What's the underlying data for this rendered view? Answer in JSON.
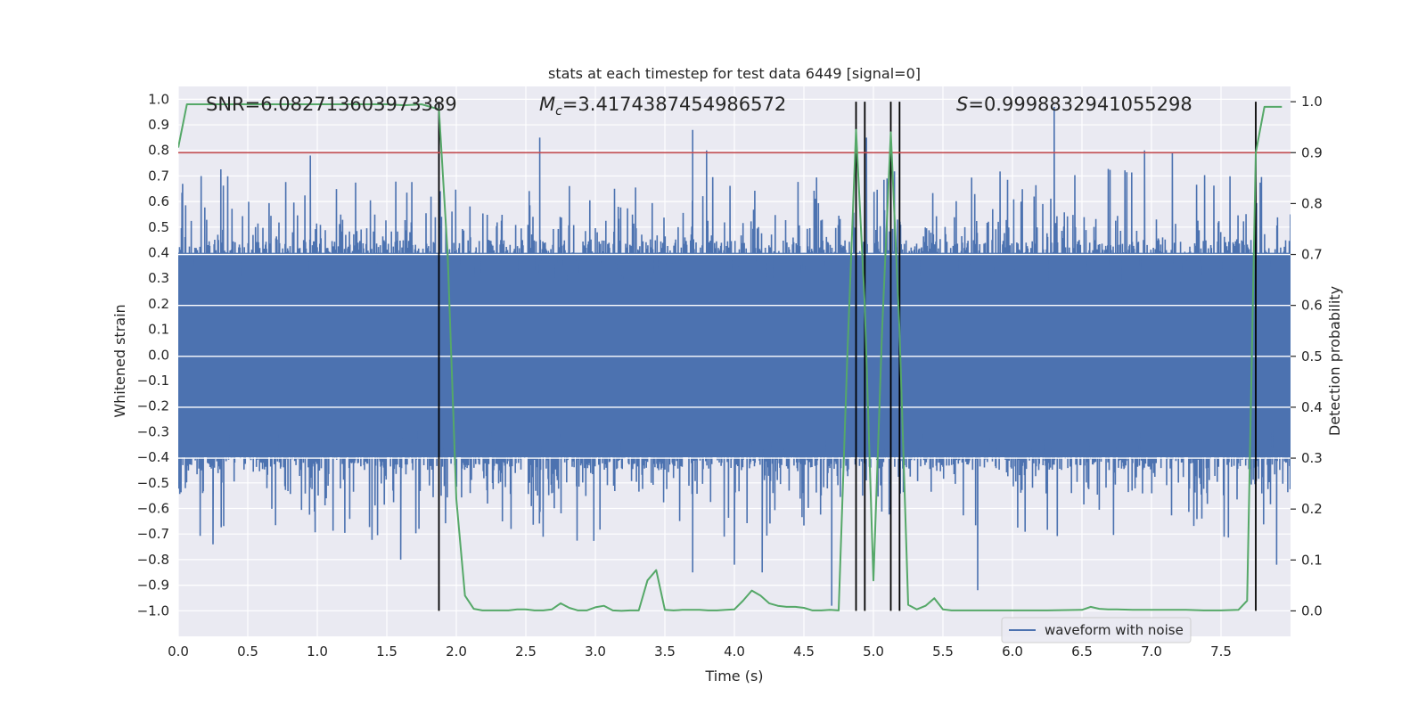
{
  "chart_data": {
    "type": "line",
    "title": "stats at each timestep for test data 6449 [signal=0]",
    "xlabel": "Time (s)",
    "ylabel": "Whitened strain",
    "y2label": "Detection probability",
    "xlim": [
      0.0,
      8.0
    ],
    "ylim": [
      -1.1,
      1.05
    ],
    "y2lim": [
      -0.05,
      1.03
    ],
    "x_ticks": [
      "0.0",
      "0.5",
      "1.0",
      "1.5",
      "2.0",
      "2.5",
      "3.0",
      "3.5",
      "4.0",
      "4.5",
      "5.0",
      "5.5",
      "6.0",
      "6.5",
      "7.0",
      "7.5"
    ],
    "y_ticks": [
      "−1.0",
      "−0.9",
      "−0.8",
      "−0.7",
      "−0.6",
      "−0.5",
      "−0.4",
      "−0.3",
      "−0.2",
      "−0.1",
      "0.0",
      "0.1",
      "0.2",
      "0.3",
      "0.4",
      "0.5",
      "0.6",
      "0.7",
      "0.8",
      "0.9",
      "1.0"
    ],
    "y2_ticks": [
      "0.0",
      "0.1",
      "0.2",
      "0.3",
      "0.4",
      "0.5",
      "0.6",
      "0.7",
      "0.8",
      "0.9",
      "1.0"
    ],
    "annotations": {
      "snr": "SNR=6.082713603973389",
      "mc_symbol": "M",
      "mc_sub": "c",
      "mc_value": "=3.4174387454986572",
      "s_symbol": "S",
      "s_value": "=0.9998832941055298"
    },
    "threshold": 0.9,
    "vertical_lines": [
      1.875,
      4.875,
      4.938,
      5.125,
      5.188,
      7.75
    ],
    "waveform": {
      "name": "waveform with noise",
      "color": "#4c72b0",
      "core_amplitude": 0.4,
      "peaks_positive": [
        {
          "x": 0.95,
          "y": 0.78
        },
        {
          "x": 2.6,
          "y": 0.85
        },
        {
          "x": 3.7,
          "y": 0.88
        },
        {
          "x": 3.8,
          "y": 0.8
        },
        {
          "x": 4.95,
          "y": 0.85
        },
        {
          "x": 6.3,
          "y": 0.97
        },
        {
          "x": 6.95,
          "y": 0.8
        },
        {
          "x": 7.15,
          "y": 0.79
        }
      ],
      "peaks_negative": [
        {
          "x": 0.25,
          "y": -0.74
        },
        {
          "x": 1.6,
          "y": -0.8
        },
        {
          "x": 3.7,
          "y": -0.85
        },
        {
          "x": 4.0,
          "y": -0.82
        },
        {
          "x": 4.2,
          "y": -0.85
        },
        {
          "x": 4.7,
          "y": -0.98
        },
        {
          "x": 5.75,
          "y": -0.92
        },
        {
          "x": 7.9,
          "y": -0.82
        }
      ]
    },
    "series": [
      {
        "name": "Detection probability",
        "color": "#55a868",
        "axis": "right",
        "x": [
          0.0,
          0.062,
          0.125,
          0.188,
          0.25,
          0.5,
          0.75,
          1.0,
          1.25,
          1.5,
          1.625,
          1.75,
          1.875,
          1.938,
          2.0,
          2.062,
          2.125,
          2.188,
          2.25,
          2.375,
          2.438,
          2.5,
          2.562,
          2.625,
          2.688,
          2.75,
          2.812,
          2.875,
          2.938,
          3.0,
          3.062,
          3.125,
          3.188,
          3.25,
          3.312,
          3.375,
          3.438,
          3.5,
          3.562,
          3.625,
          3.688,
          3.75,
          3.812,
          3.875,
          3.938,
          4.0,
          4.062,
          4.125,
          4.188,
          4.25,
          4.312,
          4.375,
          4.438,
          4.5,
          4.562,
          4.625,
          4.688,
          4.75,
          4.812,
          4.875,
          4.938,
          5.0,
          5.062,
          5.125,
          5.188,
          5.25,
          5.312,
          5.375,
          5.438,
          5.5,
          5.562,
          5.625,
          5.75,
          6.0,
          6.25,
          6.5,
          6.562,
          6.625,
          6.688,
          6.75,
          6.875,
          7.0,
          7.125,
          7.25,
          7.375,
          7.5,
          7.625,
          7.688,
          7.75,
          7.812,
          7.875,
          7.938
        ],
        "y": [
          0.91,
          0.995,
          0.995,
          0.995,
          0.995,
          0.995,
          0.995,
          0.995,
          0.995,
          0.995,
          0.993,
          0.995,
          0.985,
          0.7,
          0.22,
          0.03,
          0.004,
          0.001,
          0.001,
          0.001,
          0.003,
          0.003,
          0.001,
          0.001,
          0.003,
          0.015,
          0.006,
          0.001,
          0.001,
          0.007,
          0.01,
          0.001,
          0.0,
          0.001,
          0.001,
          0.06,
          0.08,
          0.002,
          0.001,
          0.002,
          0.002,
          0.002,
          0.001,
          0.001,
          0.002,
          0.003,
          0.02,
          0.04,
          0.03,
          0.015,
          0.01,
          0.008,
          0.008,
          0.006,
          0.001,
          0.001,
          0.002,
          0.001,
          0.5,
          0.945,
          0.6,
          0.06,
          0.55,
          0.94,
          0.55,
          0.012,
          0.003,
          0.01,
          0.025,
          0.003,
          0.001,
          0.001,
          0.001,
          0.001,
          0.001,
          0.002,
          0.008,
          0.004,
          0.003,
          0.003,
          0.002,
          0.002,
          0.002,
          0.002,
          0.001,
          0.001,
          0.002,
          0.02,
          0.9,
          0.99,
          0.99,
          0.99
        ]
      },
      {
        "name": "threshold",
        "color": "#c44e52",
        "axis": "right",
        "value": 0.9
      }
    ],
    "legend": {
      "label": "waveform with noise",
      "placement": "bottom-right"
    },
    "colors": {
      "axes_bg": "#eaeaf2",
      "grid": "#ffffff",
      "vline": "#000000"
    }
  }
}
